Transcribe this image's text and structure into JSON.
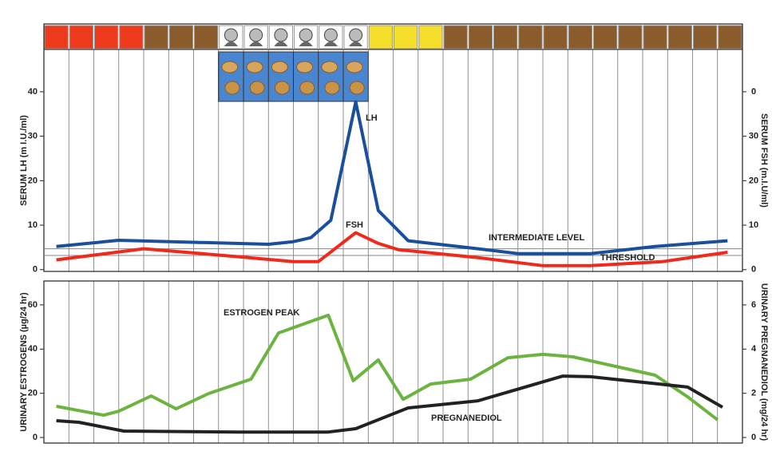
{
  "chart_data": [
    {
      "type": "line",
      "ylabel": "SERUM LH (m I.U./ml)",
      "y2label": "SERUM FSH (m.I.U/ml)",
      "xlim": [
        0,
        28
      ],
      "ylim": [
        -0.4,
        49.5
      ],
      "yticks": [
        0,
        10,
        20,
        30,
        40
      ],
      "y2lim": [
        -0.4,
        49.5
      ],
      "y2ticks": [
        0,
        10,
        20,
        30,
        {
          "value": 40,
          "label": "0"
        }
      ],
      "day_colors": [
        "#ee3a1c",
        "#ee3a1c",
        "#ee3a1c",
        "#ee3a1c",
        "#8a5c2c",
        "#8a5c2c",
        "#8a5c2c",
        "#ffffff",
        "#ffffff",
        "#ffffff",
        "#ffffff",
        "#ffffff",
        "#ffffff",
        "#f5df2a",
        "#f5df2a",
        "#f5df2a",
        "#8a5c2c",
        "#8a5c2c",
        "#8a5c2c",
        "#8a5c2c",
        "#8a5c2c",
        "#8a5c2c",
        "#8a5c2c",
        "#8a5c2c",
        "#8a5c2c",
        "#8a5c2c",
        "#8a5c2c",
        "#8a5c2c"
      ],
      "reference_lines": [
        {
          "label": "INTERMEDIATE LEVEL",
          "value": 4.7
        },
        {
          "label": "THRESHOLD",
          "value": 3.2
        }
      ],
      "series": [
        {
          "name": "LH",
          "color": "#1a4f9c",
          "x": [
            0.5,
            3.0,
            9.0,
            10.0,
            10.7,
            11.5,
            12.5,
            13.4,
            14.6,
            17.4,
            19.0,
            21.9,
            24.5,
            27.4
          ],
          "values": [
            5.2,
            6.6,
            5.7,
            6.3,
            7.2,
            11.1,
            37.7,
            13.3,
            6.5,
            4.7,
            3.6,
            3.6,
            5.2,
            6.5
          ]
        },
        {
          "name": "FSH",
          "color": "#f02a1a",
          "axis": "y2",
          "x": [
            0.5,
            4.0,
            7.8,
            10.0,
            11.0,
            12.5,
            13.4,
            14.2,
            17.4,
            20.0,
            21.9,
            24.8,
            27.4
          ],
          "values": [
            2.2,
            4.7,
            2.9,
            1.8,
            1.8,
            8.3,
            5.9,
            4.5,
            2.7,
            0.9,
            0.9,
            1.8,
            3.9
          ]
        }
      ]
    },
    {
      "type": "line",
      "ylabel": "URINARY ESTROGENS (µg/24 hr)",
      "y2label": "URINARY PREGNANEDIOL (mg/24 hr)",
      "annotation": "ESTROGEN PEAK",
      "xlim": [
        0,
        28
      ],
      "ylim": [
        -2.5,
        70.8
      ],
      "yticks": [
        0,
        20,
        40,
        60
      ],
      "y2lim": [
        -0.25,
        7.08
      ],
      "y2ticks": [
        0,
        2,
        4,
        6
      ],
      "series": [
        {
          "color": "#6db33f",
          "x": [
            0.5,
            2.4,
            3.0,
            4.3,
            5.3,
            6.6,
            8.3,
            9.4,
            11.4,
            12.4,
            13.4,
            14.4,
            15.5,
            17.1,
            18.6,
            20.0,
            21.2,
            24.5,
            25.8,
            27.0
          ],
          "values": [
            14.1,
            10.1,
            11.9,
            18.8,
            13.0,
            19.9,
            26.4,
            47.3,
            55.3,
            25.7,
            35.1,
            17.3,
            24.2,
            26.4,
            36.1,
            37.6,
            36.5,
            28.2,
            18.4,
            8.0
          ]
        },
        {
          "name": "PREGNANEDIOL",
          "color": "#222222",
          "axis": "y2",
          "x": [
            0.5,
            1.4,
            3.2,
            7.8,
            11.4,
            12.5,
            14.6,
            17.4,
            20.8,
            21.9,
            25.8,
            27.2
          ],
          "values": [
            0.76,
            0.69,
            0.29,
            0.25,
            0.25,
            0.4,
            1.34,
            1.66,
            2.78,
            2.75,
            2.28,
            1.37
          ]
        }
      ]
    }
  ]
}
